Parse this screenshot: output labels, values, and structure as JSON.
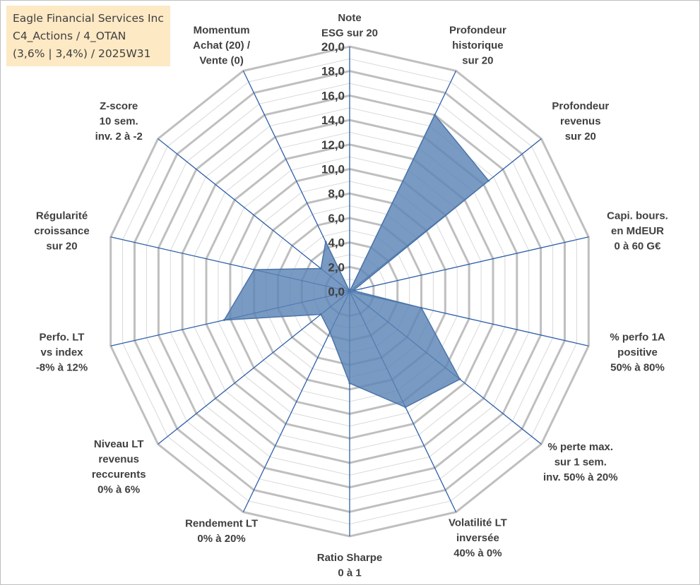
{
  "title_box": {
    "lines": [
      "Eagle Financial Services Inc",
      "C4_Actions / 4_OTAN",
      "(3,6% | 3,4%) / 2025W31"
    ]
  },
  "colors": {
    "fill": "#5b84b5",
    "stroke": "#4a74a8",
    "spoke": "#2e5fa8",
    "ring_major": "#bfbfbf",
    "ring_minor": "#d9d9d9",
    "title_bg": "#fde9c4",
    "text": "#404040"
  },
  "chart_data": {
    "type": "radar",
    "rmin": 0,
    "rmax": 20,
    "major_step": 2,
    "minor_step": 1,
    "tick_labels": [
      "0,0",
      "2,0",
      "4,0",
      "6,0",
      "8,0",
      "10,0",
      "12,0",
      "14,0",
      "16,0",
      "18,0",
      "20,0"
    ],
    "axes": [
      {
        "label": [
          "Note",
          "ESG sur 20"
        ],
        "value": 0
      },
      {
        "label": [
          "Profondeur",
          "historique",
          "sur 20"
        ],
        "value": 16
      },
      {
        "label": [
          "Profondeur",
          "revenus",
          "sur 20"
        ],
        "value": 14.5
      },
      {
        "label": [
          "Capi. bours.",
          "en MdEUR",
          "0 à 60 G€"
        ],
        "value": 0.3
      },
      {
        "label": [
          "% perfo 1A",
          "positive",
          "50% à 80%"
        ],
        "value": 6
      },
      {
        "label": [
          "% perte max.",
          "sur 1 sem.",
          "inv. 50% à 20%"
        ],
        "value": 11.5
      },
      {
        "label": [
          "Volatilité LT",
          "inversée",
          "40% à 0%"
        ],
        "value": 10.5
      },
      {
        "label": [
          "Ratio Sharpe",
          "0 à 1"
        ],
        "value": 7.5
      },
      {
        "label": [
          "Rendement LT",
          "0% à 20%"
        ],
        "value": 3.7
      },
      {
        "label": [
          "Niveau LT",
          "revenus",
          "reccurents",
          "0% à 6%"
        ],
        "value": 3
      },
      {
        "label": [
          "Perfo. LT",
          "vs index",
          "-8% à 12%"
        ],
        "value": 10.5
      },
      {
        "label": [
          "Régularité",
          "croissance",
          "sur 20"
        ],
        "value": 8
      },
      {
        "label": [
          "Z-score",
          "10 sem.",
          "inv. 2 à -2"
        ],
        "value": 3
      },
      {
        "label": [
          "Momentum",
          "Achat (20) /",
          "Vente (0)"
        ],
        "value": 4.5
      }
    ]
  }
}
